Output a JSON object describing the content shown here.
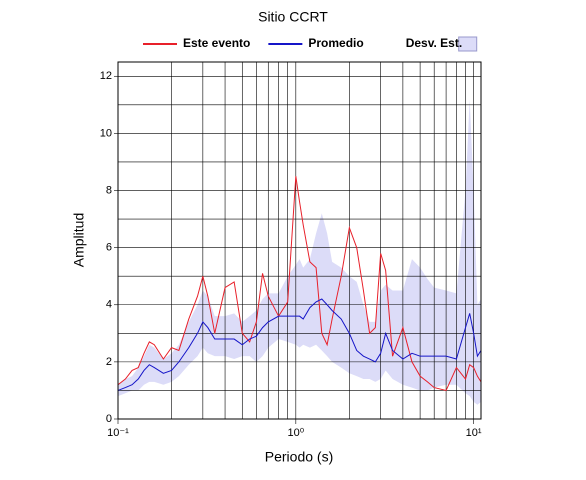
{
  "chart_data": {
    "type": "line",
    "title": "Sitio CCRT",
    "xlabel": "Periodo (s)",
    "ylabel": "Amplitud",
    "xscale": "log",
    "grid": true,
    "xlim": [
      0.1,
      11
    ],
    "ylim": [
      0,
      12.5
    ],
    "xticks": [
      {
        "value": 0.1,
        "label": "10⁻¹"
      },
      {
        "value": 1,
        "label": "10⁰"
      },
      {
        "value": 10,
        "label": "10¹"
      }
    ],
    "xminor": [
      0.2,
      0.3,
      0.4,
      0.5,
      0.6,
      0.7,
      0.8,
      0.9,
      2,
      3,
      4,
      5,
      6,
      7,
      8,
      9
    ],
    "yticks": [
      0,
      2,
      4,
      6,
      8,
      10,
      12
    ],
    "yminor": [
      1,
      3,
      5,
      7,
      9,
      11
    ],
    "x": [
      0.1,
      0.11,
      0.12,
      0.13,
      0.14,
      0.15,
      0.16,
      0.18,
      0.2,
      0.22,
      0.25,
      0.28,
      0.3,
      0.32,
      0.35,
      0.4,
      0.45,
      0.5,
      0.55,
      0.6,
      0.65,
      0.7,
      0.8,
      0.9,
      1.0,
      1.05,
      1.1,
      1.2,
      1.3,
      1.4,
      1.5,
      1.6,
      1.8,
      2.0,
      2.2,
      2.4,
      2.6,
      2.8,
      3.0,
      3.2,
      3.5,
      4.0,
      4.5,
      5.0,
      5.5,
      6,
      7,
      8,
      9,
      9.5,
      10,
      10.5,
      11
    ],
    "series": [
      {
        "name": "Este evento",
        "color": "#e8202a",
        "values": [
          1.2,
          1.4,
          1.7,
          1.8,
          2.3,
          2.7,
          2.6,
          2.1,
          2.5,
          2.4,
          3.5,
          4.3,
          5.0,
          4.3,
          3.0,
          4.6,
          4.8,
          3.0,
          2.7,
          3.4,
          5.1,
          4.3,
          3.6,
          4.1,
          8.5,
          7.6,
          6.8,
          5.5,
          5.3,
          3.0,
          2.6,
          3.5,
          5.0,
          6.7,
          6.0,
          4.5,
          3.0,
          3.2,
          5.8,
          5.2,
          2.2,
          3.2,
          2.0,
          1.5,
          1.3,
          1.1,
          1.0,
          1.8,
          1.4,
          1.9,
          1.8,
          1.5,
          1.3
        ]
      },
      {
        "name": "Promedio",
        "color": "#1515c8",
        "values": [
          1.0,
          1.1,
          1.2,
          1.4,
          1.7,
          1.9,
          1.8,
          1.6,
          1.7,
          2.0,
          2.5,
          3.0,
          3.4,
          3.2,
          2.8,
          2.8,
          2.8,
          2.6,
          2.8,
          2.9,
          3.2,
          3.4,
          3.6,
          3.6,
          3.6,
          3.6,
          3.5,
          3.9,
          4.1,
          4.2,
          4.0,
          3.8,
          3.5,
          3.0,
          2.4,
          2.2,
          2.1,
          2.0,
          2.3,
          3.0,
          2.4,
          2.1,
          2.3,
          2.2,
          2.2,
          2.2,
          2.2,
          2.1,
          3.2,
          3.7,
          3.0,
          2.2,
          2.4
        ]
      },
      {
        "name": "Desv. Est.",
        "color": "#dcdcf8",
        "lower": [
          0.8,
          0.9,
          1.0,
          1.0,
          1.2,
          1.3,
          1.3,
          1.2,
          1.3,
          1.5,
          1.9,
          2.2,
          2.5,
          2.3,
          2.2,
          2.2,
          2.1,
          2.2,
          2.2,
          2.0,
          2.2,
          2.5,
          2.8,
          2.7,
          2.6,
          2.5,
          2.6,
          2.5,
          2.6,
          2.4,
          2.2,
          2.0,
          1.8,
          1.6,
          1.5,
          1.4,
          1.4,
          1.3,
          1.4,
          1.7,
          1.4,
          1.2,
          1.1,
          1.0,
          1.0,
          1.1,
          1.2,
          1.2,
          0.9,
          0.8,
          0.6,
          0.5,
          0.6
        ],
        "upper": [
          1.2,
          1.4,
          1.5,
          1.8,
          2.2,
          2.6,
          2.5,
          2.1,
          2.3,
          2.6,
          3.4,
          4.0,
          4.5,
          4.3,
          3.6,
          3.6,
          3.7,
          3.4,
          3.6,
          3.8,
          4.2,
          4.4,
          4.4,
          5.0,
          5.4,
          5.6,
          5.3,
          5.6,
          6.5,
          7.2,
          6.5,
          5.5,
          5.3,
          5.0,
          4.8,
          4.0,
          3.4,
          3.4,
          4.5,
          4.7,
          4.5,
          4.5,
          5.6,
          5.3,
          4.9,
          4.6,
          4.5,
          4.4,
          8.0,
          11.2,
          8.0,
          4.0,
          4.2
        ]
      }
    ]
  }
}
